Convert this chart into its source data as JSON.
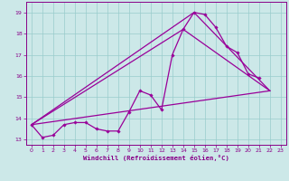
{
  "xlabel": "Windchill (Refroidissement éolien,°C)",
  "background_color": "#cce8e8",
  "grid_color": "#99cccc",
  "line_color": "#990099",
  "xlim": [
    -0.5,
    23.5
  ],
  "ylim": [
    12.75,
    19.5
  ],
  "xticks": [
    0,
    1,
    2,
    3,
    4,
    5,
    6,
    7,
    8,
    9,
    10,
    11,
    12,
    13,
    14,
    15,
    16,
    17,
    18,
    19,
    20,
    21,
    22,
    23
  ],
  "yticks": [
    13,
    14,
    15,
    16,
    17,
    18,
    19
  ],
  "line1_x": [
    0,
    1,
    2,
    3,
    4,
    5,
    6,
    7,
    8,
    9,
    10,
    11,
    12,
    13,
    14,
    15,
    16,
    17,
    18,
    19,
    20,
    21
  ],
  "line1_y": [
    13.7,
    13.1,
    13.2,
    13.7,
    13.8,
    13.8,
    13.5,
    13.4,
    13.4,
    14.3,
    15.3,
    15.1,
    14.4,
    17.0,
    18.2,
    19.0,
    18.9,
    18.3,
    17.4,
    17.1,
    16.1,
    15.9
  ],
  "trend1_x": [
    0,
    22
  ],
  "trend1_y": [
    13.7,
    15.3
  ],
  "trend2_x": [
    0,
    15,
    22
  ],
  "trend2_y": [
    13.7,
    19.0,
    15.3
  ],
  "trend3_x": [
    0,
    14,
    22
  ],
  "trend3_y": [
    13.7,
    18.2,
    15.3
  ]
}
